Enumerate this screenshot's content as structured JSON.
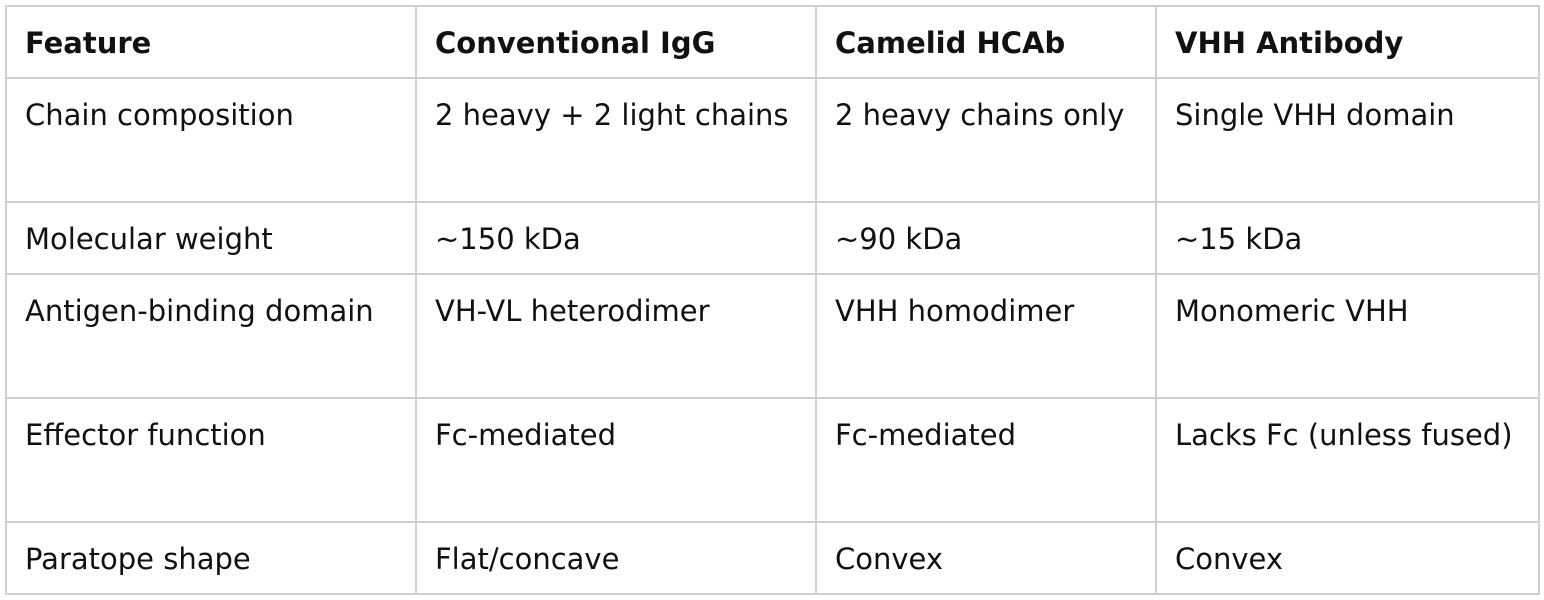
{
  "table": {
    "header": [
      "Feature",
      "Conventional IgG",
      "Camelid HCAb",
      "VHH Antibody"
    ],
    "rows": [
      [
        "Chain composition",
        "2 heavy + 2 light chains",
        "2 heavy chains only",
        "Single VHH domain"
      ],
      [
        "Molecular weight",
        "~150 kDa",
        "~90 kDa",
        "~15 kDa"
      ],
      [
        "Antigen-binding domain",
        "VH-VL heterodimer",
        "VHH homodimer",
        "Monomeric VHH"
      ],
      [
        "Effector function",
        "Fc-mediated",
        "Fc-mediated",
        "Lacks Fc (unless fused)"
      ],
      [
        "Paratope shape",
        "Flat/concave",
        "Convex",
        "Convex"
      ]
    ]
  }
}
